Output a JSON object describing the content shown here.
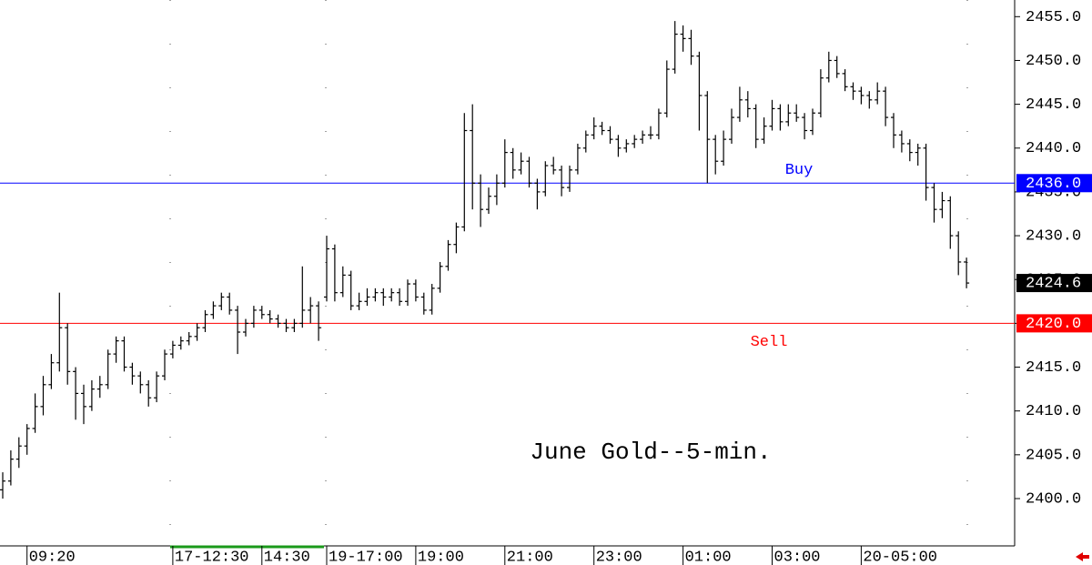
{
  "chart_data": {
    "type": "ohlc",
    "annotation": "June Gold--5-min.",
    "categories": [
      null,
      null,
      null,
      "09:20",
      null,
      null,
      null,
      null,
      null,
      null,
      null,
      null,
      null,
      null,
      null,
      null,
      null,
      null,
      null,
      null,
      null,
      "17-12:30",
      null,
      null,
      null,
      null,
      null,
      null,
      null,
      null,
      null,
      null,
      "14:30",
      null,
      null,
      null,
      null,
      null,
      null,
      null,
      "19-17:00",
      null,
      null,
      null,
      null,
      null,
      null,
      null,
      null,
      null,
      null,
      "19:00",
      null,
      null,
      null,
      null,
      null,
      null,
      null,
      null,
      null,
      null,
      "21:00",
      null,
      null,
      null,
      null,
      null,
      null,
      null,
      null,
      null,
      null,
      "23:00",
      null,
      null,
      null,
      null,
      null,
      null,
      null,
      null,
      null,
      null,
      "01:00",
      null,
      null,
      null,
      null,
      null,
      null,
      null,
      null,
      null,
      null,
      "03:00",
      null,
      null,
      null,
      null,
      null,
      null,
      null,
      null,
      null,
      null,
      "20-05:00",
      null,
      null,
      null,
      null,
      null,
      null,
      null,
      null,
      null,
      null,
      null,
      null,
      null
    ],
    "open": [
      2401.0,
      2402.0,
      2404.5,
      2406.0,
      2408.0,
      2410.5,
      2413.0,
      2415.5,
      2419.5,
      2414.5,
      2412.0,
      2410.5,
      2412.5,
      2413.0,
      2416.5,
      2418.0,
      2415.0,
      2414.0,
      2413.0,
      2411.5,
      2414.0,
      2416.5,
      2417.5,
      2418.0,
      2418.5,
      2419.5,
      2421.0,
      2422.0,
      2423.0,
      2421.5,
      2419.0,
      2420.0,
      2421.5,
      2421.0,
      2420.5,
      2420.0,
      2419.5,
      2420.0,
      2421.5,
      2422.0,
      2423.0,
      2428.5,
      2423.5,
      2425.5,
      2422.0,
      2422.5,
      2423.0,
      2423.5,
      2423.0,
      2423.5,
      2422.5,
      2424.5,
      2423.0,
      2421.5,
      2424.0,
      2426.5,
      2429.0,
      2431.0,
      2442.0,
      2436.0,
      2433.0,
      2434.5,
      2436.0,
      2439.5,
      2437.5,
      2438.5,
      2436.0,
      2435.0,
      2438.0,
      2437.5,
      2435.5,
      2437.5,
      2440.0,
      2441.5,
      2442.5,
      2442.0,
      2441.0,
      2440.0,
      2440.5,
      2441.0,
      2441.5,
      2441.5,
      2444.0,
      2449.0,
      2453.0,
      2452.5,
      2450.5,
      2446.0,
      2441.0,
      2438.5,
      2441.0,
      2443.5,
      2445.5,
      2444.5,
      2441.0,
      2442.5,
      2444.5,
      2443.0,
      2444.0,
      2443.5,
      2442.0,
      2444.0,
      2448.0,
      2450.0,
      2448.5,
      2447.0,
      2446.5,
      2446.0,
      2445.5,
      2446.5,
      2443.5,
      2441.5,
      2440.5,
      2439.5,
      2440.0,
      2435.5,
      2433.0,
      2434.0,
      2430.0,
      2427.0
    ],
    "high": [
      2403.0,
      2405.5,
      2407.0,
      2408.5,
      2412.0,
      2414.0,
      2416.5,
      2423.5,
      2420.0,
      2415.0,
      2413.0,
      2413.5,
      2414.0,
      2417.0,
      2418.5,
      2418.5,
      2415.5,
      2414.5,
      2413.5,
      2414.5,
      2417.0,
      2418.0,
      2418.5,
      2419.0,
      2420.0,
      2421.5,
      2422.5,
      2423.5,
      2423.5,
      2422.0,
      2420.5,
      2422.0,
      2422.0,
      2421.5,
      2421.0,
      2420.5,
      2420.5,
      2426.5,
      2423.0,
      2422.5,
      2430.0,
      2429.0,
      2426.5,
      2426.0,
      2423.5,
      2424.0,
      2424.0,
      2424.0,
      2424.0,
      2424.0,
      2425.0,
      2425.0,
      2423.5,
      2424.5,
      2427.0,
      2429.5,
      2431.5,
      2444.0,
      2445.0,
      2437.0,
      2435.5,
      2437.0,
      2441.0,
      2440.0,
      2439.5,
      2439.0,
      2436.5,
      2438.5,
      2439.0,
      2438.0,
      2438.0,
      2440.5,
      2442.0,
      2443.5,
      2443.0,
      2442.5,
      2441.5,
      2441.0,
      2441.5,
      2442.0,
      2442.5,
      2444.5,
      2450.0,
      2454.5,
      2454.0,
      2453.5,
      2451.0,
      2446.5,
      2441.5,
      2442.0,
      2444.5,
      2447.0,
      2446.5,
      2445.0,
      2443.5,
      2445.5,
      2445.0,
      2445.0,
      2445.0,
      2444.0,
      2444.5,
      2449.0,
      2451.0,
      2450.5,
      2449.0,
      2447.5,
      2447.0,
      2446.5,
      2447.5,
      2447.0,
      2444.0,
      2442.0,
      2441.0,
      2440.5,
      2440.5,
      2436.0,
      2435.0,
      2434.5,
      2430.5,
      2427.5
    ],
    "low": [
      2400.0,
      2401.5,
      2403.5,
      2405.0,
      2407.5,
      2409.5,
      2412.5,
      2414.5,
      2413.0,
      2409.0,
      2408.5,
      2410.0,
      2411.5,
      2412.5,
      2415.5,
      2414.5,
      2413.0,
      2412.0,
      2410.5,
      2411.0,
      2413.5,
      2416.0,
      2417.0,
      2417.5,
      2418.0,
      2419.0,
      2420.5,
      2421.5,
      2421.0,
      2416.5,
      2418.5,
      2419.5,
      2420.5,
      2420.0,
      2419.5,
      2419.0,
      2419.0,
      2419.5,
      2420.0,
      2418.0,
      2422.5,
      2422.5,
      2423.0,
      2421.5,
      2421.5,
      2422.0,
      2422.5,
      2422.0,
      2422.5,
      2422.0,
      2422.0,
      2422.5,
      2421.0,
      2421.0,
      2423.5,
      2426.0,
      2428.0,
      2430.5,
      2433.0,
      2431.0,
      2432.5,
      2433.5,
      2435.5,
      2436.5,
      2437.0,
      2435.5,
      2433.0,
      2434.5,
      2437.0,
      2434.5,
      2435.0,
      2437.0,
      2439.5,
      2441.0,
      2441.5,
      2440.5,
      2439.0,
      2439.5,
      2440.0,
      2440.5,
      2441.0,
      2441.0,
      2443.5,
      2448.5,
      2451.0,
      2449.5,
      2442.0,
      2436.0,
      2437.0,
      2438.0,
      2440.5,
      2443.0,
      2443.5,
      2440.0,
      2440.5,
      2442.0,
      2442.0,
      2442.5,
      2443.0,
      2441.0,
      2441.5,
      2443.5,
      2447.5,
      2448.0,
      2446.5,
      2445.5,
      2445.0,
      2444.5,
      2445.0,
      2442.5,
      2440.0,
      2439.5,
      2438.5,
      2438.0,
      2434.0,
      2431.5,
      2432.0,
      2428.5,
      2425.5,
      2424.0
    ],
    "close": [
      2402.0,
      2404.5,
      2406.0,
      2408.0,
      2410.5,
      2413.0,
      2415.5,
      2419.5,
      2414.5,
      2412.0,
      2410.5,
      2412.5,
      2413.0,
      2416.5,
      2418.0,
      2415.0,
      2414.0,
      2413.0,
      2411.5,
      2414.0,
      2416.5,
      2417.5,
      2418.0,
      2418.5,
      2419.5,
      2421.0,
      2422.0,
      2423.0,
      2421.5,
      2419.0,
      2420.0,
      2421.5,
      2421.0,
      2420.5,
      2420.0,
      2419.5,
      2420.0,
      2421.5,
      2422.0,
      2419.5,
      2428.5,
      2423.5,
      2425.5,
      2422.0,
      2422.5,
      2423.0,
      2423.5,
      2423.0,
      2423.5,
      2422.5,
      2424.5,
      2423.0,
      2421.5,
      2424.0,
      2426.5,
      2429.0,
      2431.0,
      2442.0,
      2436.0,
      2433.0,
      2434.5,
      2436.0,
      2439.5,
      2437.5,
      2438.5,
      2436.0,
      2435.0,
      2438.0,
      2437.5,
      2435.5,
      2437.5,
      2440.0,
      2441.5,
      2442.5,
      2442.0,
      2441.0,
      2440.0,
      2440.5,
      2441.0,
      2441.5,
      2441.5,
      2444.0,
      2449.0,
      2453.0,
      2452.5,
      2450.5,
      2446.0,
      2441.0,
      2438.5,
      2441.0,
      2443.5,
      2445.5,
      2444.5,
      2441.0,
      2442.5,
      2444.5,
      2443.0,
      2444.0,
      2443.5,
      2442.0,
      2444.0,
      2448.0,
      2450.0,
      2448.5,
      2447.0,
      2446.5,
      2446.0,
      2445.5,
      2446.5,
      2443.5,
      2441.5,
      2440.5,
      2439.5,
      2440.0,
      2435.5,
      2433.0,
      2434.0,
      2430.0,
      2427.0,
      2424.6
    ],
    "ylim": [
      2394.6,
      2456.9
    ],
    "yticks": [
      {
        "value": 2400,
        "label": "2400.0"
      },
      {
        "value": 2405,
        "label": "2405.0"
      },
      {
        "value": 2410,
        "label": "2410.0"
      },
      {
        "value": 2415,
        "label": "2415.0"
      },
      {
        "value": 2420,
        "label": "2420.0"
      },
      {
        "value": 2425,
        "label": "2425.0"
      },
      {
        "value": 2430,
        "label": "2430.0"
      },
      {
        "value": 2435,
        "label": "2435.0"
      },
      {
        "value": 2440,
        "label": "2440.0"
      },
      {
        "value": 2445,
        "label": "2445.0"
      },
      {
        "value": 2450,
        "label": "2450.0"
      },
      {
        "value": 2455,
        "label": "2455.0"
      }
    ],
    "levels": [
      {
        "name": "Buy",
        "value": 2436,
        "label": "2436.0",
        "color": "#0000ff"
      },
      {
        "name": "Sell",
        "value": 2420,
        "label": "2420.0",
        "color": "#ff0000"
      }
    ],
    "last_price": {
      "value": 2424.6,
      "label": "2424.6",
      "color": "#000000"
    },
    "color": "#000000"
  }
}
